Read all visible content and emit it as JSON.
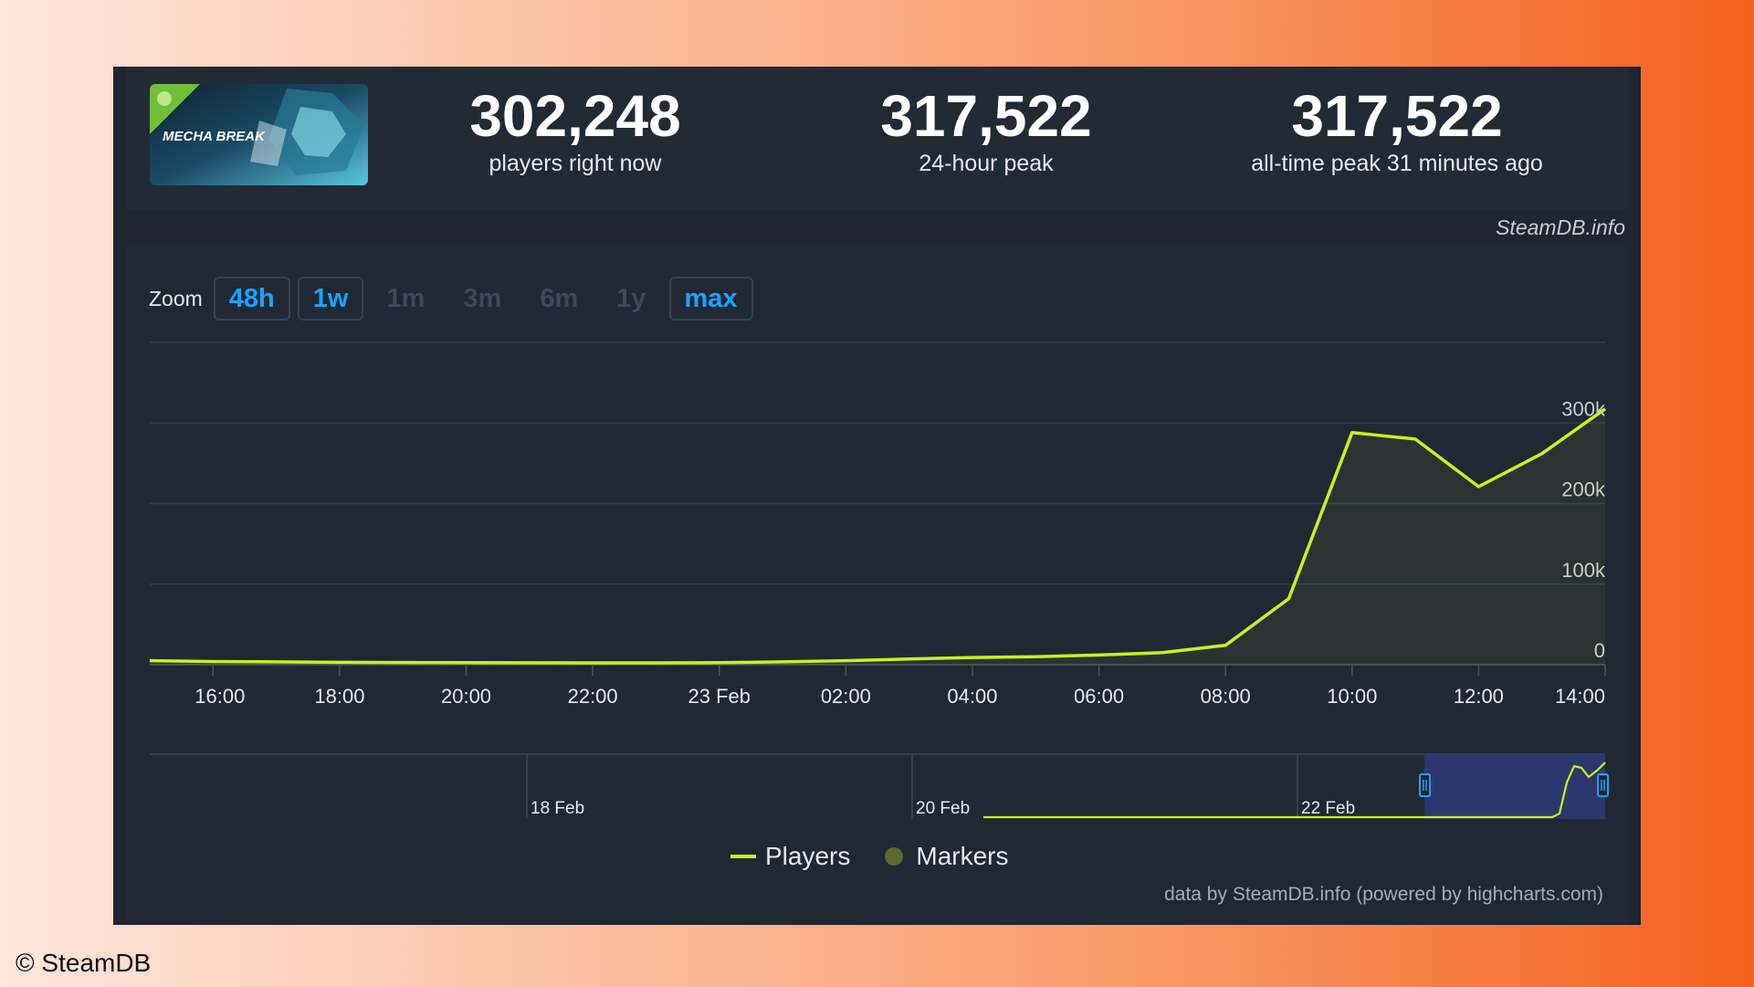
{
  "header": {
    "game_logo_text": "MECHA BREAK",
    "stats": [
      {
        "value": "302,248",
        "label": "players right now"
      },
      {
        "value": "317,522",
        "label": "24-hour peak"
      },
      {
        "value": "317,522",
        "label": "all-time peak 31 minutes ago"
      }
    ],
    "source_credit": "SteamDB.info"
  },
  "zoom": {
    "label": "Zoom",
    "options": [
      {
        "label": "48h",
        "active": true
      },
      {
        "label": "1w",
        "active": true
      },
      {
        "label": "1m",
        "active": false
      },
      {
        "label": "3m",
        "active": false
      },
      {
        "label": "6m",
        "active": false
      },
      {
        "label": "1y",
        "active": false
      },
      {
        "label": "max",
        "active": true
      }
    ]
  },
  "chart_data": {
    "type": "line",
    "series": [
      {
        "name": "Players",
        "x": [
          "15:00",
          "16:00",
          "17:00",
          "18:00",
          "19:00",
          "20:00",
          "21:00",
          "22:00",
          "23:00",
          "00:00",
          "01:00",
          "02:00",
          "03:00",
          "04:00",
          "05:00",
          "06:00",
          "07:00",
          "08:00",
          "09:00",
          "10:00",
          "11:00",
          "12:00",
          "13:00",
          "14:00"
        ],
        "values": [
          5000,
          4000,
          3500,
          3000,
          2700,
          2500,
          2400,
          2300,
          2300,
          2500,
          3500,
          5000,
          7000,
          9000,
          10000,
          12000,
          15000,
          24000,
          82000,
          288000,
          280000,
          221000,
          262000,
          317522
        ]
      }
    ],
    "x_tick_labels": [
      "16:00",
      "18:00",
      "20:00",
      "22:00",
      "23 Feb",
      "02:00",
      "04:00",
      "06:00",
      "08:00",
      "10:00",
      "12:00",
      "14:00"
    ],
    "y_tick_labels": [
      "0",
      "100k",
      "200k",
      "300k"
    ],
    "ylim": [
      0,
      400000
    ],
    "grid": true,
    "legend": [
      "Players",
      "Markers"
    ],
    "navigator": {
      "date_labels": [
        "18 Feb",
        "20 Feb",
        "22 Feb"
      ]
    },
    "colors": {
      "line": "#c9f01c",
      "marker": "#5a6b2c",
      "navigator_selection": "#2e3a73"
    }
  },
  "footer": {
    "data_credit": "data by SteamDB.info (powered by highcharts.com)",
    "copyright": "© SteamDB"
  }
}
